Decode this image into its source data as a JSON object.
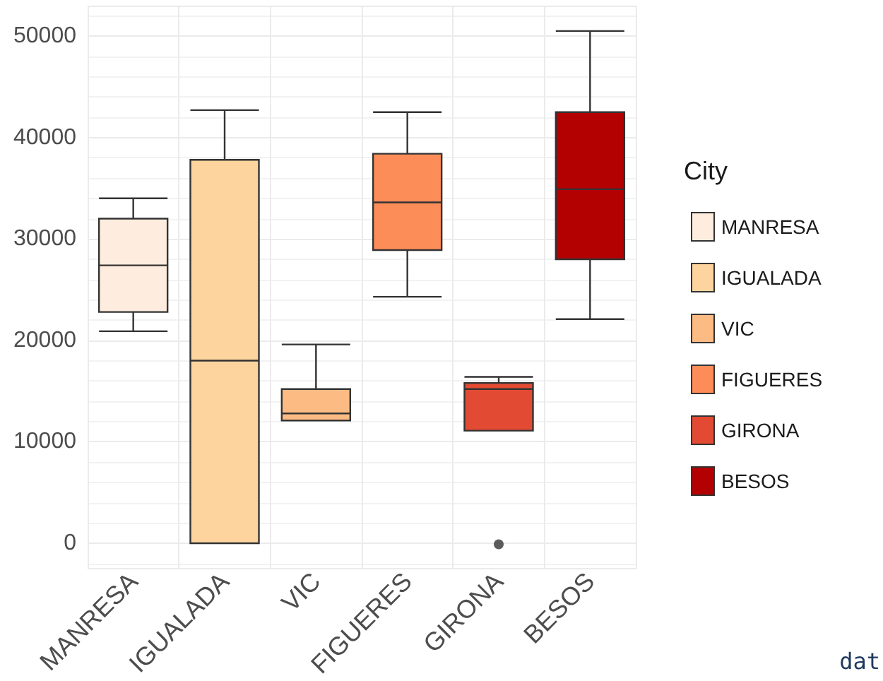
{
  "chart_data": {
    "type": "box",
    "categories": [
      "MANRESA",
      "IGUALADA",
      "VIC",
      "FIGUERES",
      "GIRONA",
      "BESOS"
    ],
    "series": [
      {
        "name": "MANRESA",
        "color": "#feedde",
        "boxes": [
          {
            "low": 20900,
            "q1": 22800,
            "median": 27400,
            "q3": 32000,
            "high": 34000
          },
          null,
          null,
          null,
          null,
          null
        ]
      },
      {
        "name": "IGUALADA",
        "color": "#fdd49e",
        "boxes": [
          null,
          {
            "low": 0,
            "q1": 0,
            "median": 18000,
            "q3": 37800,
            "high": 42700
          },
          null,
          null,
          null,
          null
        ]
      },
      {
        "name": "VIC",
        "color": "#fdbb84",
        "boxes": [
          null,
          null,
          {
            "low": 12100,
            "q1": 12100,
            "median": 12800,
            "q3": 15200,
            "high": 19600
          },
          null,
          null,
          null
        ]
      },
      {
        "name": "FIGUERES",
        "color": "#fc8d59",
        "boxes": [
          null,
          null,
          null,
          {
            "low": 24300,
            "q1": 28900,
            "median": 33600,
            "q3": 38400,
            "high": 42500
          },
          null,
          null
        ]
      },
      {
        "name": "GIRONA",
        "color": "#e34a33",
        "boxes": [
          null,
          null,
          null,
          null,
          {
            "low": 11100,
            "q1": 11100,
            "median": 15200,
            "q3": 15800,
            "high": 16400,
            "outliers": [
              -100
            ]
          },
          null
        ]
      },
      {
        "name": "BESOS",
        "color": "#b30000",
        "boxes": [
          null,
          null,
          null,
          null,
          null,
          {
            "low": 22100,
            "q1": 28000,
            "median": 34900,
            "q3": 42500,
            "high": 50500
          }
        ]
      }
    ],
    "legend_title": "City",
    "legend": "right",
    "ylim": [
      -2500,
      53000
    ],
    "yticks": [
      0,
      10000,
      20000,
      30000,
      40000,
      50000
    ],
    "grid": true,
    "annotations": [
      "dat"
    ]
  }
}
